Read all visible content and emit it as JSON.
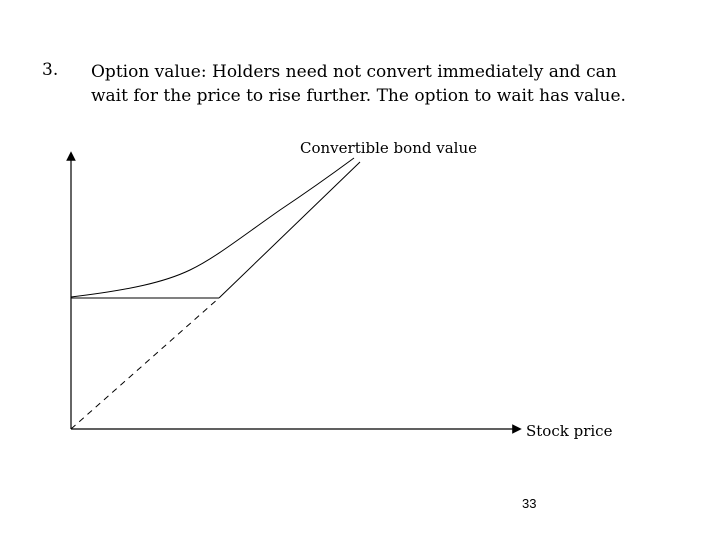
{
  "point": {
    "number": "3.",
    "lines": [
      "Option value: Holders need not convert immediately and can",
      "wait for the price to rise further. The option to wait has value."
    ]
  },
  "diagram": {
    "curve_label": "Convertible bond value",
    "x_axis_label": "Stock price"
  },
  "slide_number": "33"
}
